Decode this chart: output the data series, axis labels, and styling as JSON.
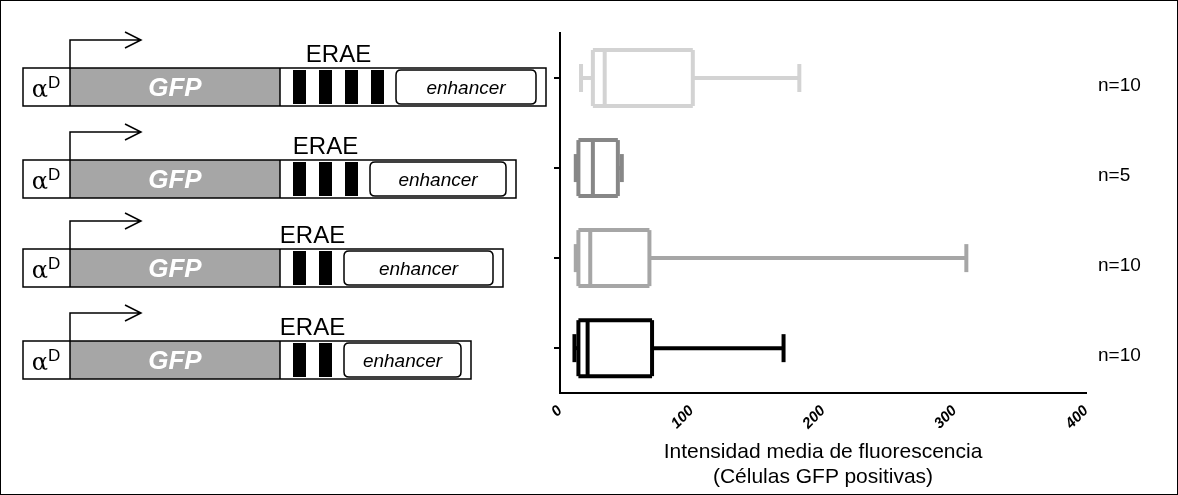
{
  "chart_data": {
    "type": "box",
    "orientation": "horizontal",
    "categories": [
      null,
      null,
      null,
      null
    ],
    "colors": [
      "#d3d3d3",
      "#878787",
      "#a6a6a6",
      "#000000"
    ],
    "boxes": [
      {
        "low": 16,
        "q1": 25,
        "median": 34,
        "q3": 101,
        "high": 182
      },
      {
        "low": 12,
        "q1": 14,
        "median": 25,
        "q3": 44,
        "high": 47
      },
      {
        "low": 12,
        "q1": 14,
        "median": 23,
        "q3": 68,
        "high": 309
      },
      {
        "low": 11,
        "q1": 14,
        "median": 21,
        "q3": 70,
        "high": 170
      }
    ],
    "xlim": [
      0,
      400
    ],
    "xticks": [
      0,
      100,
      200,
      300,
      400
    ],
    "tick_labels": "x",
    "grid": false,
    "xlabel": "Intensidad media de fluorescencia\n(Células GFP positivas)",
    "annotations": [
      "α$^{D}$",
      "GFP",
      "ERAE",
      "enhancer",
      "n=10",
      "α$^{D}$",
      "GFP",
      "ERAE",
      "enhancer",
      "n=5",
      "α$^{D}$",
      "GFP",
      "ERAE",
      "enhancer",
      "n=10",
      "α$^{D}$",
      "GFP",
      "ERAE",
      "enhancer",
      "n=10"
    ]
  }
}
